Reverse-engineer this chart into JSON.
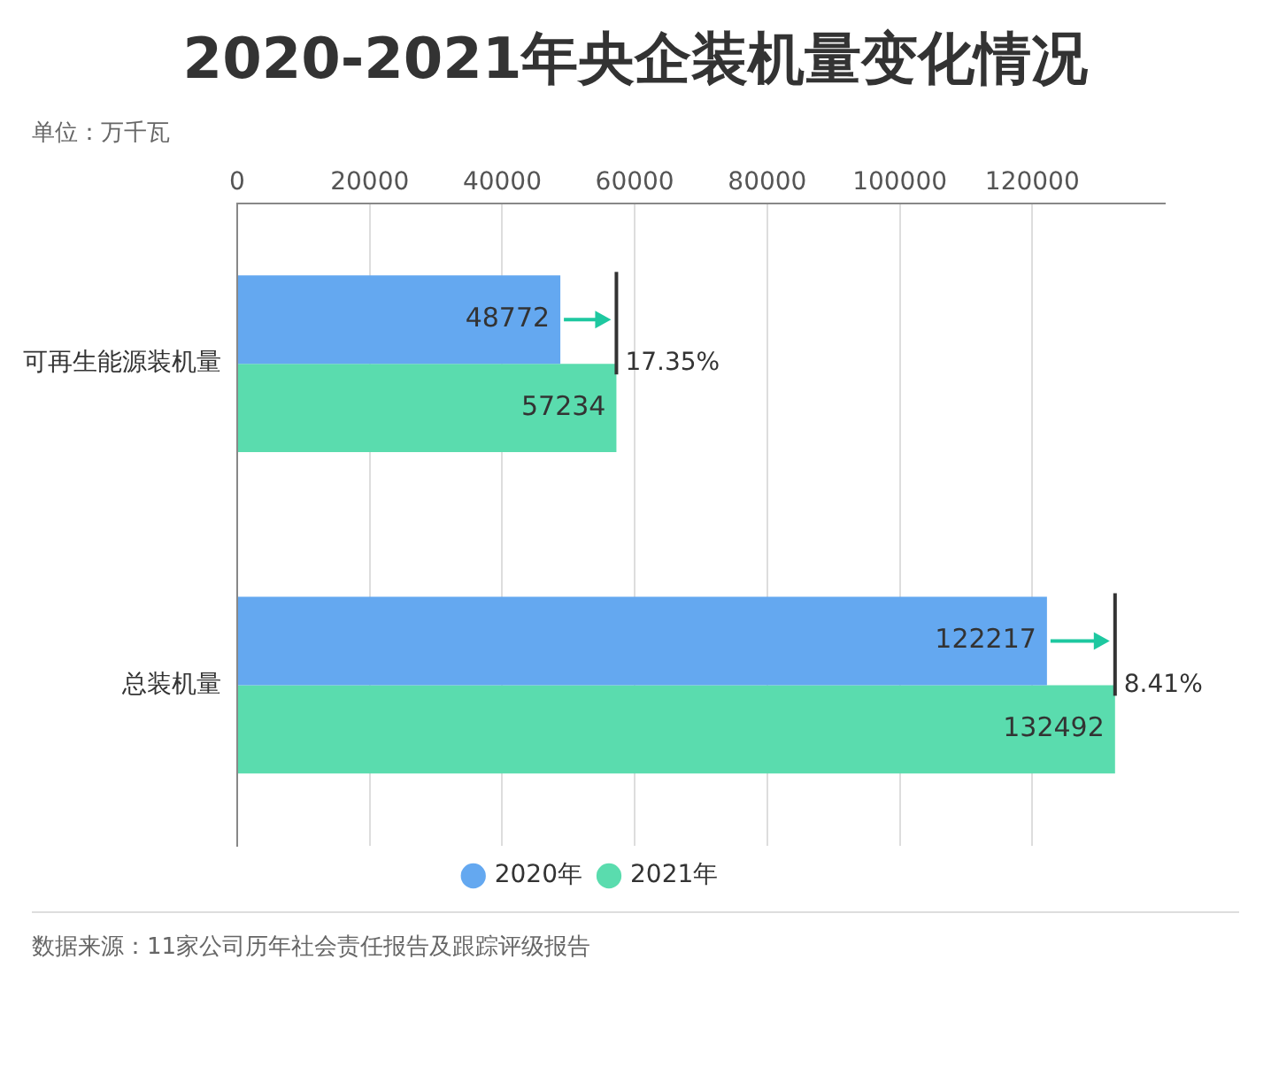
{
  "chart_data": {
    "type": "bar",
    "orientation": "horizontal",
    "title": "2020-2021年央企装机量变化情况",
    "subtitle": "单位：万千瓦",
    "categories": [
      "可再生能源装机量",
      "总装机量"
    ],
    "series": [
      {
        "name": "2020年",
        "color": "#64a8f0",
        "values": [
          48772,
          122217
        ]
      },
      {
        "name": "2021年",
        "color": "#5adcae",
        "values": [
          57234,
          132492
        ]
      }
    ],
    "xlim": [
      0,
      140000
    ],
    "xticks": [
      0,
      20000,
      40000,
      60000,
      80000,
      100000,
      120000
    ],
    "grid": "x",
    "legend": "bottom",
    "data_labels": true,
    "annotations": [
      {
        "text": "17.35%",
        "x": 57234,
        "y": "可再生能源装机量"
      },
      {
        "text": "8.41%",
        "x": 132492,
        "y": "总装机量"
      },
      "数据来源：11家公司历年社会责任报告及跟踪评级报告"
    ]
  }
}
